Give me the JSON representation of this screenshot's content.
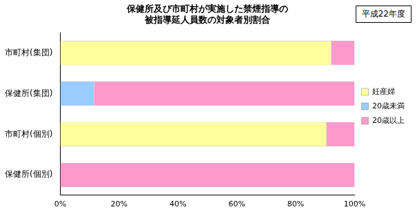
{
  "chart_data": {
    "type": "bar",
    "orientation": "horizontal",
    "stacked": true,
    "title": [
      "保健所及び市町村が実施した禁煙指導の",
      "被指導延人員数の対象者別割合"
    ],
    "annotations": [
      "平成22年度"
    ],
    "categories": [
      "市町村(集団)",
      "保健所(集団)",
      "市町村(個別)",
      "保健所(個別)"
    ],
    "series": [
      {
        "name": "妊産婦",
        "color": "#ffffa0",
        "values": [
          92,
          0,
          90.5,
          0
        ]
      },
      {
        "name": "20歳未満",
        "color": "#99ccff",
        "values": [
          0,
          11.5,
          0,
          0
        ]
      },
      {
        "name": "20歳以上",
        "color": "#ff99cc",
        "values": [
          8,
          88.5,
          9.5,
          100
        ]
      }
    ],
    "xlim": [
      0,
      100
    ],
    "xticks": [
      {
        "value": 0,
        "label": "0%"
      },
      {
        "value": 20,
        "label": "20%"
      },
      {
        "value": 40,
        "label": "40%"
      },
      {
        "value": 60,
        "label": "60%"
      },
      {
        "value": 80,
        "label": "80%"
      },
      {
        "value": 100,
        "label": "100%"
      }
    ],
    "grid": false,
    "legend": "right",
    "data_labels": false
  }
}
